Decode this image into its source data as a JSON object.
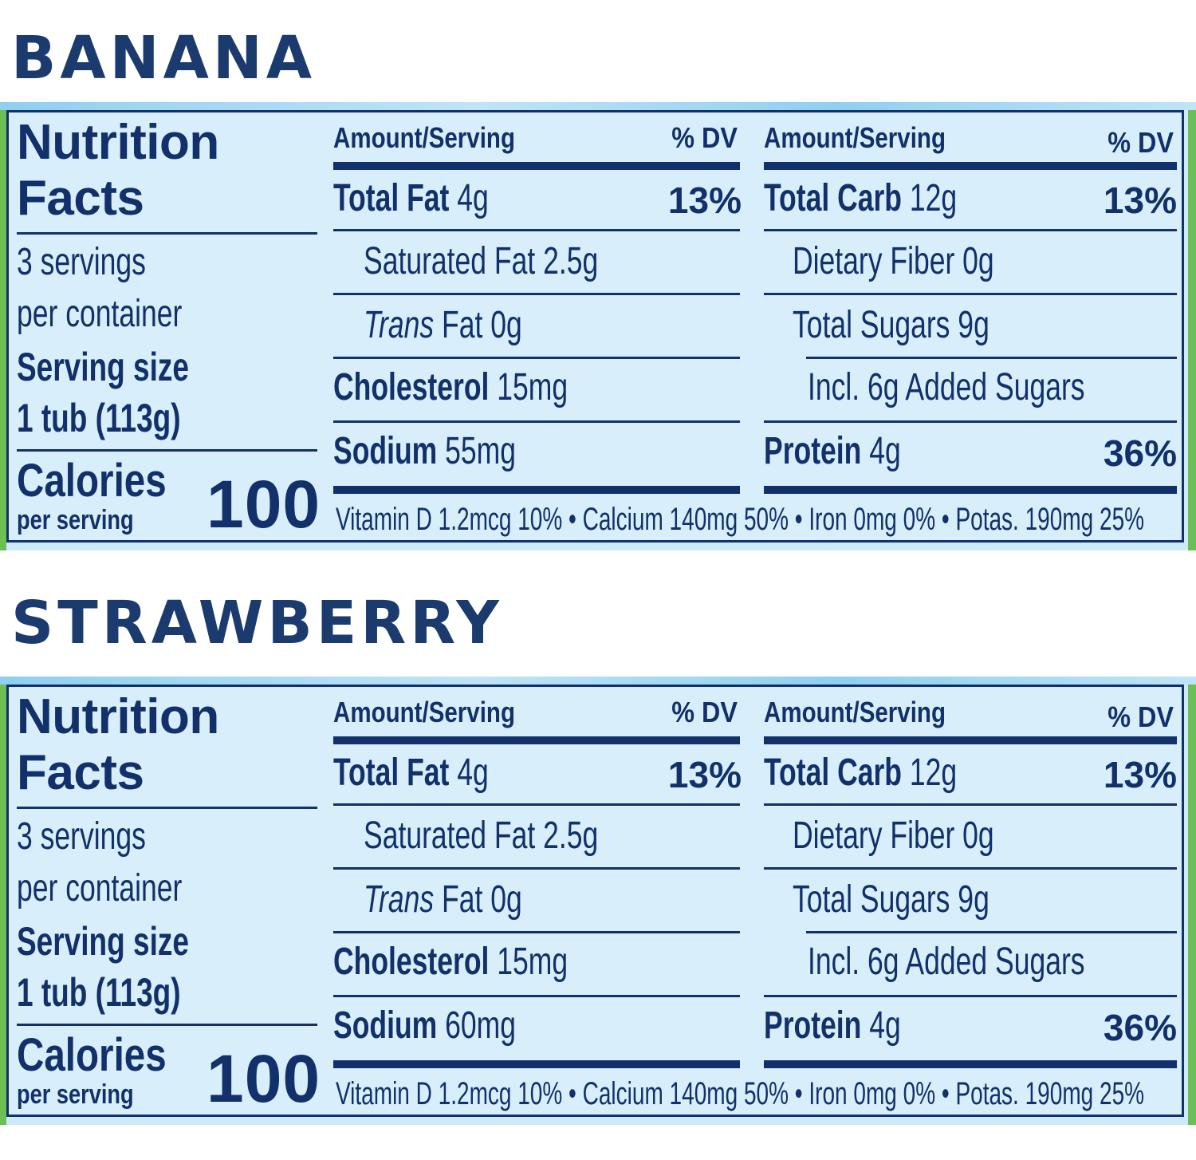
{
  "labels": [
    {
      "flavor": "BANANA",
      "title_line1": "Nutrition",
      "title_line2": "Facts",
      "servings_line1": "3 servings",
      "servings_line2": "per container",
      "serving_size_label": "Serving size",
      "serving_size_value": "1 tub (113g)",
      "calories_label": "Calories",
      "calories_sub": "per serving",
      "calories_value": "100",
      "amount_header": "Amount/Serving",
      "dv_header": "% DV",
      "total_fat_label": "Total Fat",
      "total_fat_value": " 4g",
      "total_fat_dv": "13%",
      "sat_fat": "Saturated Fat 2.5g",
      "trans_label": "Trans",
      "trans_rest": " Fat 0g",
      "cholesterol_label": "Cholesterol",
      "cholesterol_value": " 15mg",
      "sodium_label": "Sodium",
      "sodium_value": " 55mg",
      "total_carb_label": "Total Carb",
      "total_carb_value": " 12g",
      "total_carb_dv": "13%",
      "fiber": "Dietary Fiber 0g",
      "sugars": "Total Sugars 9g",
      "added_sugars": "Incl. 6g Added Sugars",
      "protein_label": "Protein",
      "protein_value": " 4g",
      "protein_dv": "36%",
      "vitamins": "Vitamin D 1.2mcg 10% • Calcium 140mg 50% • Iron 0mg 0% • Potas. 190mg 25%"
    },
    {
      "flavor": "STRAWBERRY",
      "title_line1": "Nutrition",
      "title_line2": "Facts",
      "servings_line1": "3 servings",
      "servings_line2": "per container",
      "serving_size_label": "Serving size",
      "serving_size_value": "1 tub (113g)",
      "calories_label": "Calories",
      "calories_sub": "per serving",
      "calories_value": "100",
      "amount_header": "Amount/Serving",
      "dv_header": "% DV",
      "total_fat_label": "Total Fat",
      "total_fat_value": " 4g",
      "total_fat_dv": "13%",
      "sat_fat": "Saturated Fat 2.5g",
      "trans_label": "Trans",
      "trans_rest": " Fat 0g",
      "cholesterol_label": "Cholesterol",
      "cholesterol_value": " 15mg",
      "sodium_label": "Sodium",
      "sodium_value": " 60mg",
      "total_carb_label": "Total Carb",
      "total_carb_value": " 12g",
      "total_carb_dv": "13%",
      "fiber": "Dietary Fiber 0g",
      "sugars": "Total Sugars 9g",
      "added_sugars": "Incl. 6g Added Sugars",
      "protein_label": "Protein",
      "protein_value": " 4g",
      "protein_dv": "36%",
      "vitamins": "Vitamin D 1.2mcg 10% • Calcium 140mg 50% • Iron 0mg 0% • Potas. 190mg 25%"
    }
  ]
}
